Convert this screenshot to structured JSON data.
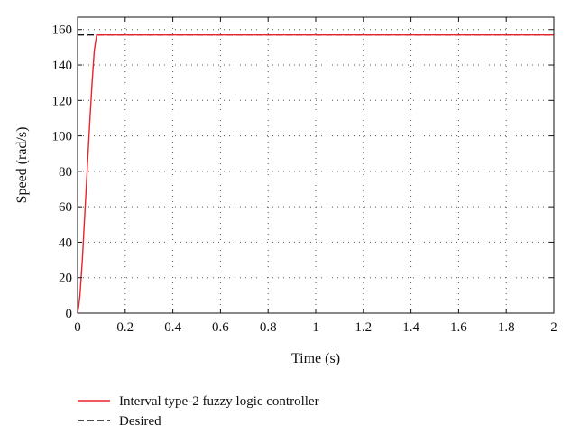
{
  "chart_data": {
    "type": "line",
    "title": "",
    "xlabel": "Time (s)",
    "ylabel": "Speed (rad/s)",
    "xlim": [
      0,
      2
    ],
    "ylim": [
      0,
      167
    ],
    "xticks": [
      0,
      0.2,
      0.4,
      0.6,
      0.8,
      1,
      1.2,
      1.4,
      1.6,
      1.8,
      2
    ],
    "xtick_labels": [
      "0",
      "0.2",
      "0.4",
      "0.6",
      "0.8",
      "1",
      "1.2",
      "1.4",
      "1.6",
      "1.8",
      "2"
    ],
    "yticks": [
      0,
      20,
      40,
      60,
      80,
      100,
      120,
      140,
      160
    ],
    "ytick_labels": [
      "0",
      "20",
      "40",
      "60",
      "80",
      "100",
      "120",
      "140",
      "160"
    ],
    "grid": true,
    "grid_style": "dotted",
    "legend_position": "bottom-left",
    "series": [
      {
        "name": "Interval type-2 fuzzy logic controller",
        "color": "#e8232b",
        "style": "solid",
        "x": [
          0,
          0.005,
          0.01,
          0.02,
          0.03,
          0.04,
          0.05,
          0.06,
          0.07,
          0.08,
          0.1,
          0.5,
          1.0,
          1.5,
          2.0
        ],
        "y": [
          0,
          4,
          10,
          30,
          55,
          80,
          105,
          128,
          148,
          157,
          157,
          157,
          157,
          157,
          157
        ]
      },
      {
        "name": "Desired",
        "color": "#111111",
        "style": "dashed",
        "x": [
          0,
          2
        ],
        "y": [
          157,
          157
        ]
      }
    ]
  }
}
